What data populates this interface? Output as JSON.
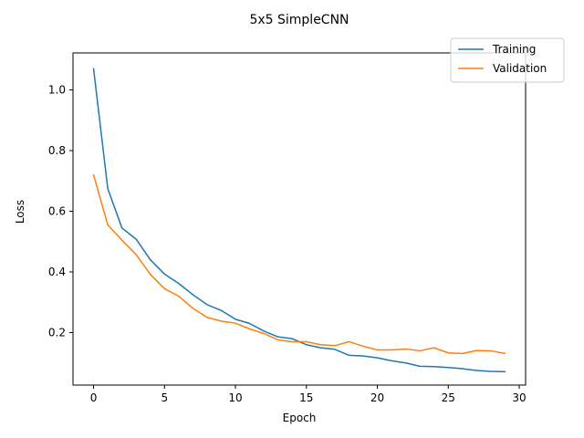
{
  "chart_data": {
    "type": "line",
    "title": "5x5 SimpleCNN",
    "xlabel": "Epoch",
    "ylabel": "Loss",
    "xlim": [
      -1.45,
      30.45
    ],
    "ylim": [
      0.027,
      1.122
    ],
    "xticks": [
      0,
      5,
      10,
      15,
      20,
      25,
      30
    ],
    "yticks": [
      0.2,
      0.4,
      0.6,
      0.8,
      1.0
    ],
    "ytick_labels": [
      "0.2",
      "0.4",
      "0.6",
      "0.8",
      "1.0"
    ],
    "grid": false,
    "legend_position": "top-right",
    "x": [
      0,
      1,
      2,
      3,
      4,
      5,
      6,
      7,
      8,
      9,
      10,
      11,
      12,
      13,
      14,
      15,
      16,
      17,
      18,
      19,
      20,
      21,
      22,
      23,
      24,
      25,
      26,
      27,
      28,
      29
    ],
    "series": [
      {
        "name": "Training",
        "color": "#1f77b4",
        "values": [
          1.07,
          0.675,
          0.545,
          0.508,
          0.44,
          0.393,
          0.362,
          0.325,
          0.292,
          0.273,
          0.244,
          0.23,
          0.205,
          0.186,
          0.18,
          0.16,
          0.15,
          0.145,
          0.125,
          0.123,
          0.117,
          0.107,
          0.1,
          0.089,
          0.088,
          0.085,
          0.081,
          0.075,
          0.072,
          0.071
        ]
      },
      {
        "name": "Validation",
        "color": "#ff7f0e",
        "values": [
          0.72,
          0.555,
          0.505,
          0.457,
          0.392,
          0.345,
          0.32,
          0.28,
          0.25,
          0.238,
          0.231,
          0.212,
          0.197,
          0.176,
          0.17,
          0.17,
          0.16,
          0.157,
          0.17,
          0.155,
          0.143,
          0.143,
          0.146,
          0.14,
          0.15,
          0.133,
          0.131,
          0.141,
          0.14,
          0.131
        ]
      }
    ]
  }
}
